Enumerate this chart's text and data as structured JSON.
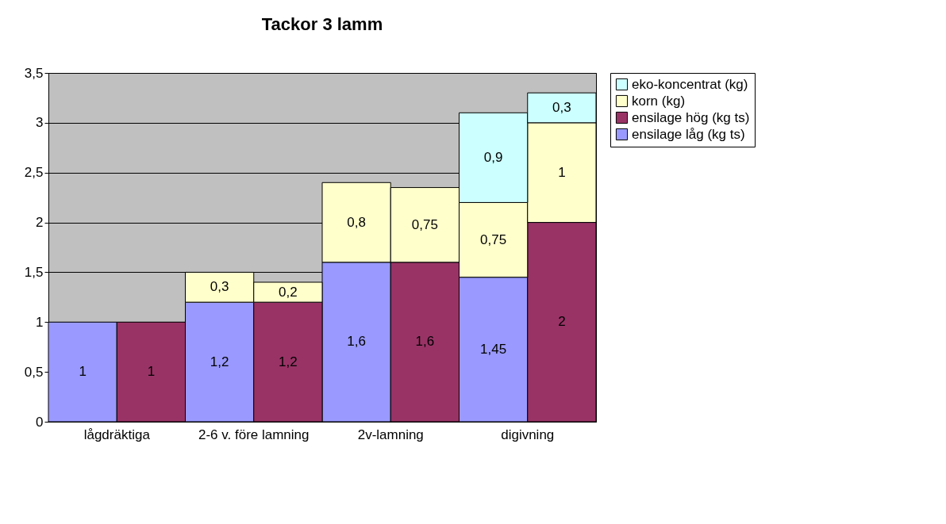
{
  "chart_data": {
    "type": "bar",
    "title": "Tackor 3 lamm",
    "stacked": true,
    "categories": [
      "lågdräktiga",
      null,
      "2-6 v. före lamning",
      null,
      "2v-lamning",
      null,
      "digivning",
      null
    ],
    "series": [
      {
        "name": "ensilage låg (kg ts)",
        "color": "#9999ff",
        "values": [
          1,
          null,
          1.2,
          null,
          1.6,
          null,
          1.45,
          null
        ],
        "value_labels": [
          "1",
          null,
          "1,2",
          null,
          "1,6",
          null,
          "1,45",
          null
        ]
      },
      {
        "name": "ensilage hög (kg ts)",
        "color": "#993366",
        "values": [
          null,
          1,
          null,
          1.2,
          null,
          1.6,
          null,
          2
        ],
        "value_labels": [
          null,
          "1",
          null,
          "1,2",
          null,
          "1,6",
          null,
          "2"
        ]
      },
      {
        "name": "korn (kg)",
        "color": "#ffffcc",
        "values": [
          null,
          null,
          0.3,
          0.2,
          0.8,
          0.75,
          0.75,
          1
        ],
        "value_labels": [
          null,
          null,
          "0,3",
          "0,2",
          "0,8",
          "0,75",
          "0,75",
          "1"
        ]
      },
      {
        "name": "eko-koncentrat (kg)",
        "color": "#ccffff",
        "values": [
          null,
          null,
          null,
          null,
          null,
          null,
          0.9,
          0.3
        ],
        "value_labels": [
          null,
          null,
          null,
          null,
          null,
          null,
          "0,9",
          "0,3"
        ]
      }
    ],
    "ylim": [
      0,
      3.5
    ],
    "yticks": [
      0,
      {
        "value": 0.5,
        "label": "0,5"
      },
      1,
      {
        "value": 1.5,
        "label": "1,5"
      },
      2,
      {
        "value": 2.5,
        "label": "2,5"
      },
      3,
      {
        "value": 3.5,
        "label": "3,5"
      }
    ],
    "grid": "y",
    "legend": "right"
  }
}
